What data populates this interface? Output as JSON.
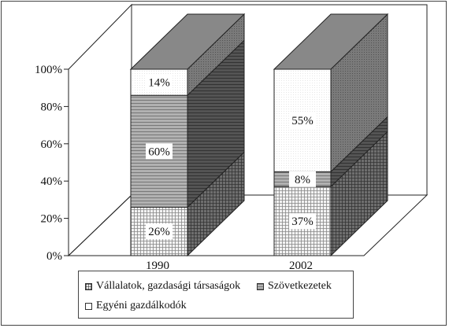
{
  "chart_data": {
    "type": "bar",
    "stacked": true,
    "three_d": true,
    "categories": [
      "1990",
      "2002"
    ],
    "series": [
      {
        "name": "Vállalatok, gazdasági társaságok",
        "values": [
          26,
          37
        ],
        "labels": [
          "26%",
          "37%"
        ],
        "color": "#e8e8e8",
        "pattern": "grid"
      },
      {
        "name": "Szövetkezetek",
        "values": [
          60,
          8
        ],
        "labels": [
          "60%",
          "8%"
        ],
        "color": "#a0a0a0",
        "pattern": "stripes"
      },
      {
        "name": "Egyéni gazdálkodók",
        "values": [
          14,
          55
        ],
        "labels": [
          "14%",
          "55%"
        ],
        "color": "#ffffff",
        "pattern": "dots"
      }
    ],
    "ylim": [
      0,
      100
    ],
    "yticks": [
      "0%",
      "20%",
      "40%",
      "60%",
      "80%",
      "100%"
    ],
    "grid": false,
    "legend_position": "bottom"
  }
}
